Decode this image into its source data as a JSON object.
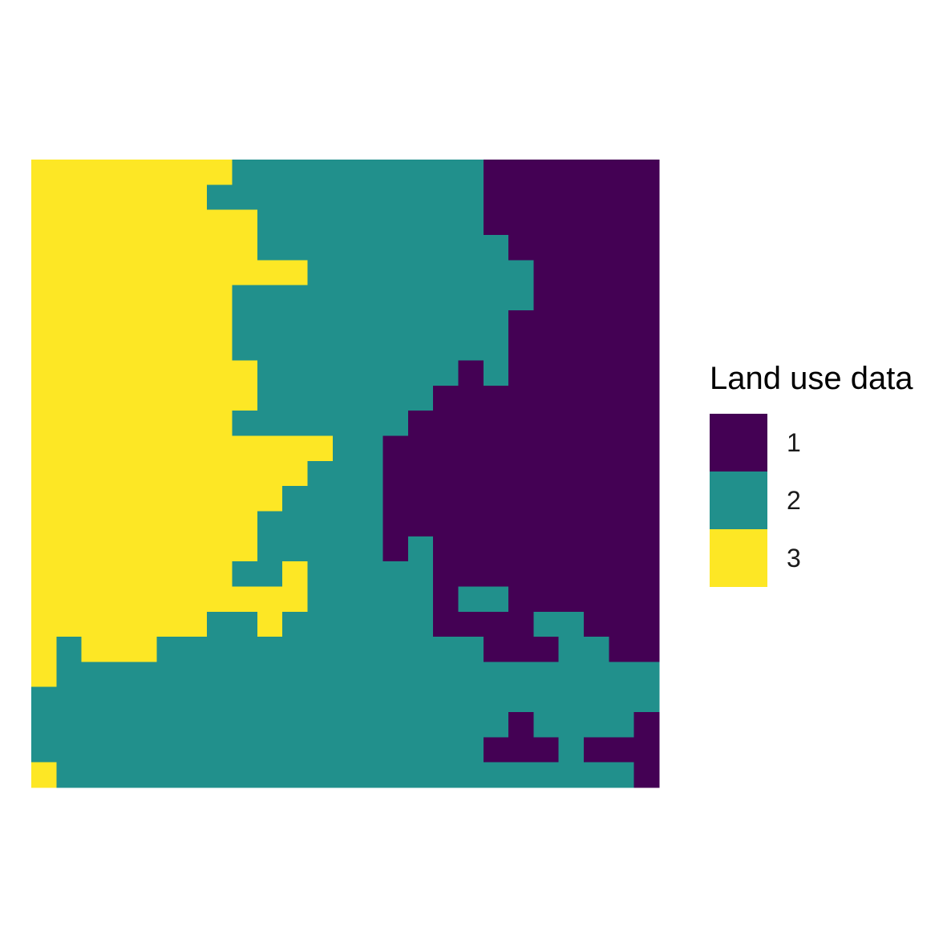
{
  "chart_data": {
    "type": "heatmap",
    "title": "",
    "legend": {
      "title": "Land use data",
      "position": "right",
      "entries": [
        {
          "value": 1,
          "label": "1",
          "color": "#440154"
        },
        {
          "value": 2,
          "label": "2",
          "color": "#21908C"
        },
        {
          "value": 3,
          "label": "3",
          "color": "#FDE725"
        }
      ]
    },
    "grid": false,
    "axes": false,
    "ncol": 25,
    "nrow": 25,
    "rows": [
      [
        3,
        3,
        3,
        3,
        3,
        3,
        3,
        3,
        2,
        2,
        2,
        2,
        2,
        2,
        2,
        2,
        2,
        2,
        1,
        1,
        1,
        1,
        1,
        1,
        1
      ],
      [
        3,
        3,
        3,
        3,
        3,
        3,
        3,
        2,
        2,
        2,
        2,
        2,
        2,
        2,
        2,
        2,
        2,
        2,
        1,
        1,
        1,
        1,
        1,
        1,
        1
      ],
      [
        3,
        3,
        3,
        3,
        3,
        3,
        3,
        3,
        3,
        2,
        2,
        2,
        2,
        2,
        2,
        2,
        2,
        2,
        1,
        1,
        1,
        1,
        1,
        1,
        1
      ],
      [
        3,
        3,
        3,
        3,
        3,
        3,
        3,
        3,
        3,
        2,
        2,
        2,
        2,
        2,
        2,
        2,
        2,
        2,
        2,
        1,
        1,
        1,
        1,
        1,
        1
      ],
      [
        3,
        3,
        3,
        3,
        3,
        3,
        3,
        3,
        3,
        3,
        3,
        2,
        2,
        2,
        2,
        2,
        2,
        2,
        2,
        2,
        1,
        1,
        1,
        1,
        1
      ],
      [
        3,
        3,
        3,
        3,
        3,
        3,
        3,
        3,
        2,
        2,
        2,
        2,
        2,
        2,
        2,
        2,
        2,
        2,
        2,
        2,
        1,
        1,
        1,
        1,
        1
      ],
      [
        3,
        3,
        3,
        3,
        3,
        3,
        3,
        3,
        2,
        2,
        2,
        2,
        2,
        2,
        2,
        2,
        2,
        2,
        2,
        1,
        1,
        1,
        1,
        1,
        1
      ],
      [
        3,
        3,
        3,
        3,
        3,
        3,
        3,
        3,
        2,
        2,
        2,
        2,
        2,
        2,
        2,
        2,
        2,
        2,
        2,
        1,
        1,
        1,
        1,
        1,
        1
      ],
      [
        3,
        3,
        3,
        3,
        3,
        3,
        3,
        3,
        3,
        2,
        2,
        2,
        2,
        2,
        2,
        2,
        2,
        1,
        2,
        1,
        1,
        1,
        1,
        1,
        1
      ],
      [
        3,
        3,
        3,
        3,
        3,
        3,
        3,
        3,
        3,
        2,
        2,
        2,
        2,
        2,
        2,
        2,
        1,
        1,
        1,
        1,
        1,
        1,
        1,
        1,
        1
      ],
      [
        3,
        3,
        3,
        3,
        3,
        3,
        3,
        3,
        2,
        2,
        2,
        2,
        2,
        2,
        2,
        1,
        1,
        1,
        1,
        1,
        1,
        1,
        1,
        1,
        1
      ],
      [
        3,
        3,
        3,
        3,
        3,
        3,
        3,
        3,
        3,
        3,
        3,
        3,
        2,
        2,
        1,
        1,
        1,
        1,
        1,
        1,
        1,
        1,
        1,
        1,
        1
      ],
      [
        3,
        3,
        3,
        3,
        3,
        3,
        3,
        3,
        3,
        3,
        3,
        2,
        2,
        2,
        1,
        1,
        1,
        1,
        1,
        1,
        1,
        1,
        1,
        1,
        1
      ],
      [
        3,
        3,
        3,
        3,
        3,
        3,
        3,
        3,
        3,
        3,
        2,
        2,
        2,
        2,
        1,
        1,
        1,
        1,
        1,
        1,
        1,
        1,
        1,
        1,
        1
      ],
      [
        3,
        3,
        3,
        3,
        3,
        3,
        3,
        3,
        3,
        2,
        2,
        2,
        2,
        2,
        1,
        1,
        1,
        1,
        1,
        1,
        1,
        1,
        1,
        1,
        1
      ],
      [
        3,
        3,
        3,
        3,
        3,
        3,
        3,
        3,
        3,
        2,
        2,
        2,
        2,
        2,
        1,
        2,
        1,
        1,
        1,
        1,
        1,
        1,
        1,
        1,
        1
      ],
      [
        3,
        3,
        3,
        3,
        3,
        3,
        3,
        3,
        2,
        2,
        3,
        2,
        2,
        2,
        2,
        2,
        1,
        1,
        1,
        1,
        1,
        1,
        1,
        1,
        1
      ],
      [
        3,
        3,
        3,
        3,
        3,
        3,
        3,
        3,
        3,
        3,
        3,
        2,
        2,
        2,
        2,
        2,
        1,
        2,
        2,
        1,
        1,
        1,
        1,
        1,
        1
      ],
      [
        3,
        3,
        3,
        3,
        3,
        3,
        3,
        2,
        2,
        3,
        2,
        2,
        2,
        2,
        2,
        2,
        1,
        1,
        1,
        1,
        2,
        2,
        1,
        1,
        1
      ],
      [
        3,
        2,
        3,
        3,
        3,
        2,
        2,
        2,
        2,
        2,
        2,
        2,
        2,
        2,
        2,
        2,
        2,
        2,
        1,
        1,
        1,
        2,
        2,
        1,
        1
      ],
      [
        3,
        2,
        2,
        2,
        2,
        2,
        2,
        2,
        2,
        2,
        2,
        2,
        2,
        2,
        2,
        2,
        2,
        2,
        2,
        2,
        2,
        2,
        2,
        2,
        2
      ],
      [
        2,
        2,
        2,
        2,
        2,
        2,
        2,
        2,
        2,
        2,
        2,
        2,
        2,
        2,
        2,
        2,
        2,
        2,
        2,
        2,
        2,
        2,
        2,
        2,
        2
      ],
      [
        2,
        2,
        2,
        2,
        2,
        2,
        2,
        2,
        2,
        2,
        2,
        2,
        2,
        2,
        2,
        2,
        2,
        2,
        2,
        1,
        2,
        2,
        2,
        2,
        1
      ],
      [
        2,
        2,
        2,
        2,
        2,
        2,
        2,
        2,
        2,
        2,
        2,
        2,
        2,
        2,
        2,
        2,
        2,
        2,
        1,
        1,
        1,
        2,
        1,
        1,
        1
      ],
      [
        3,
        2,
        2,
        2,
        2,
        2,
        2,
        2,
        2,
        2,
        2,
        2,
        2,
        2,
        2,
        2,
        2,
        2,
        2,
        2,
        2,
        2,
        2,
        2,
        1
      ]
    ]
  }
}
